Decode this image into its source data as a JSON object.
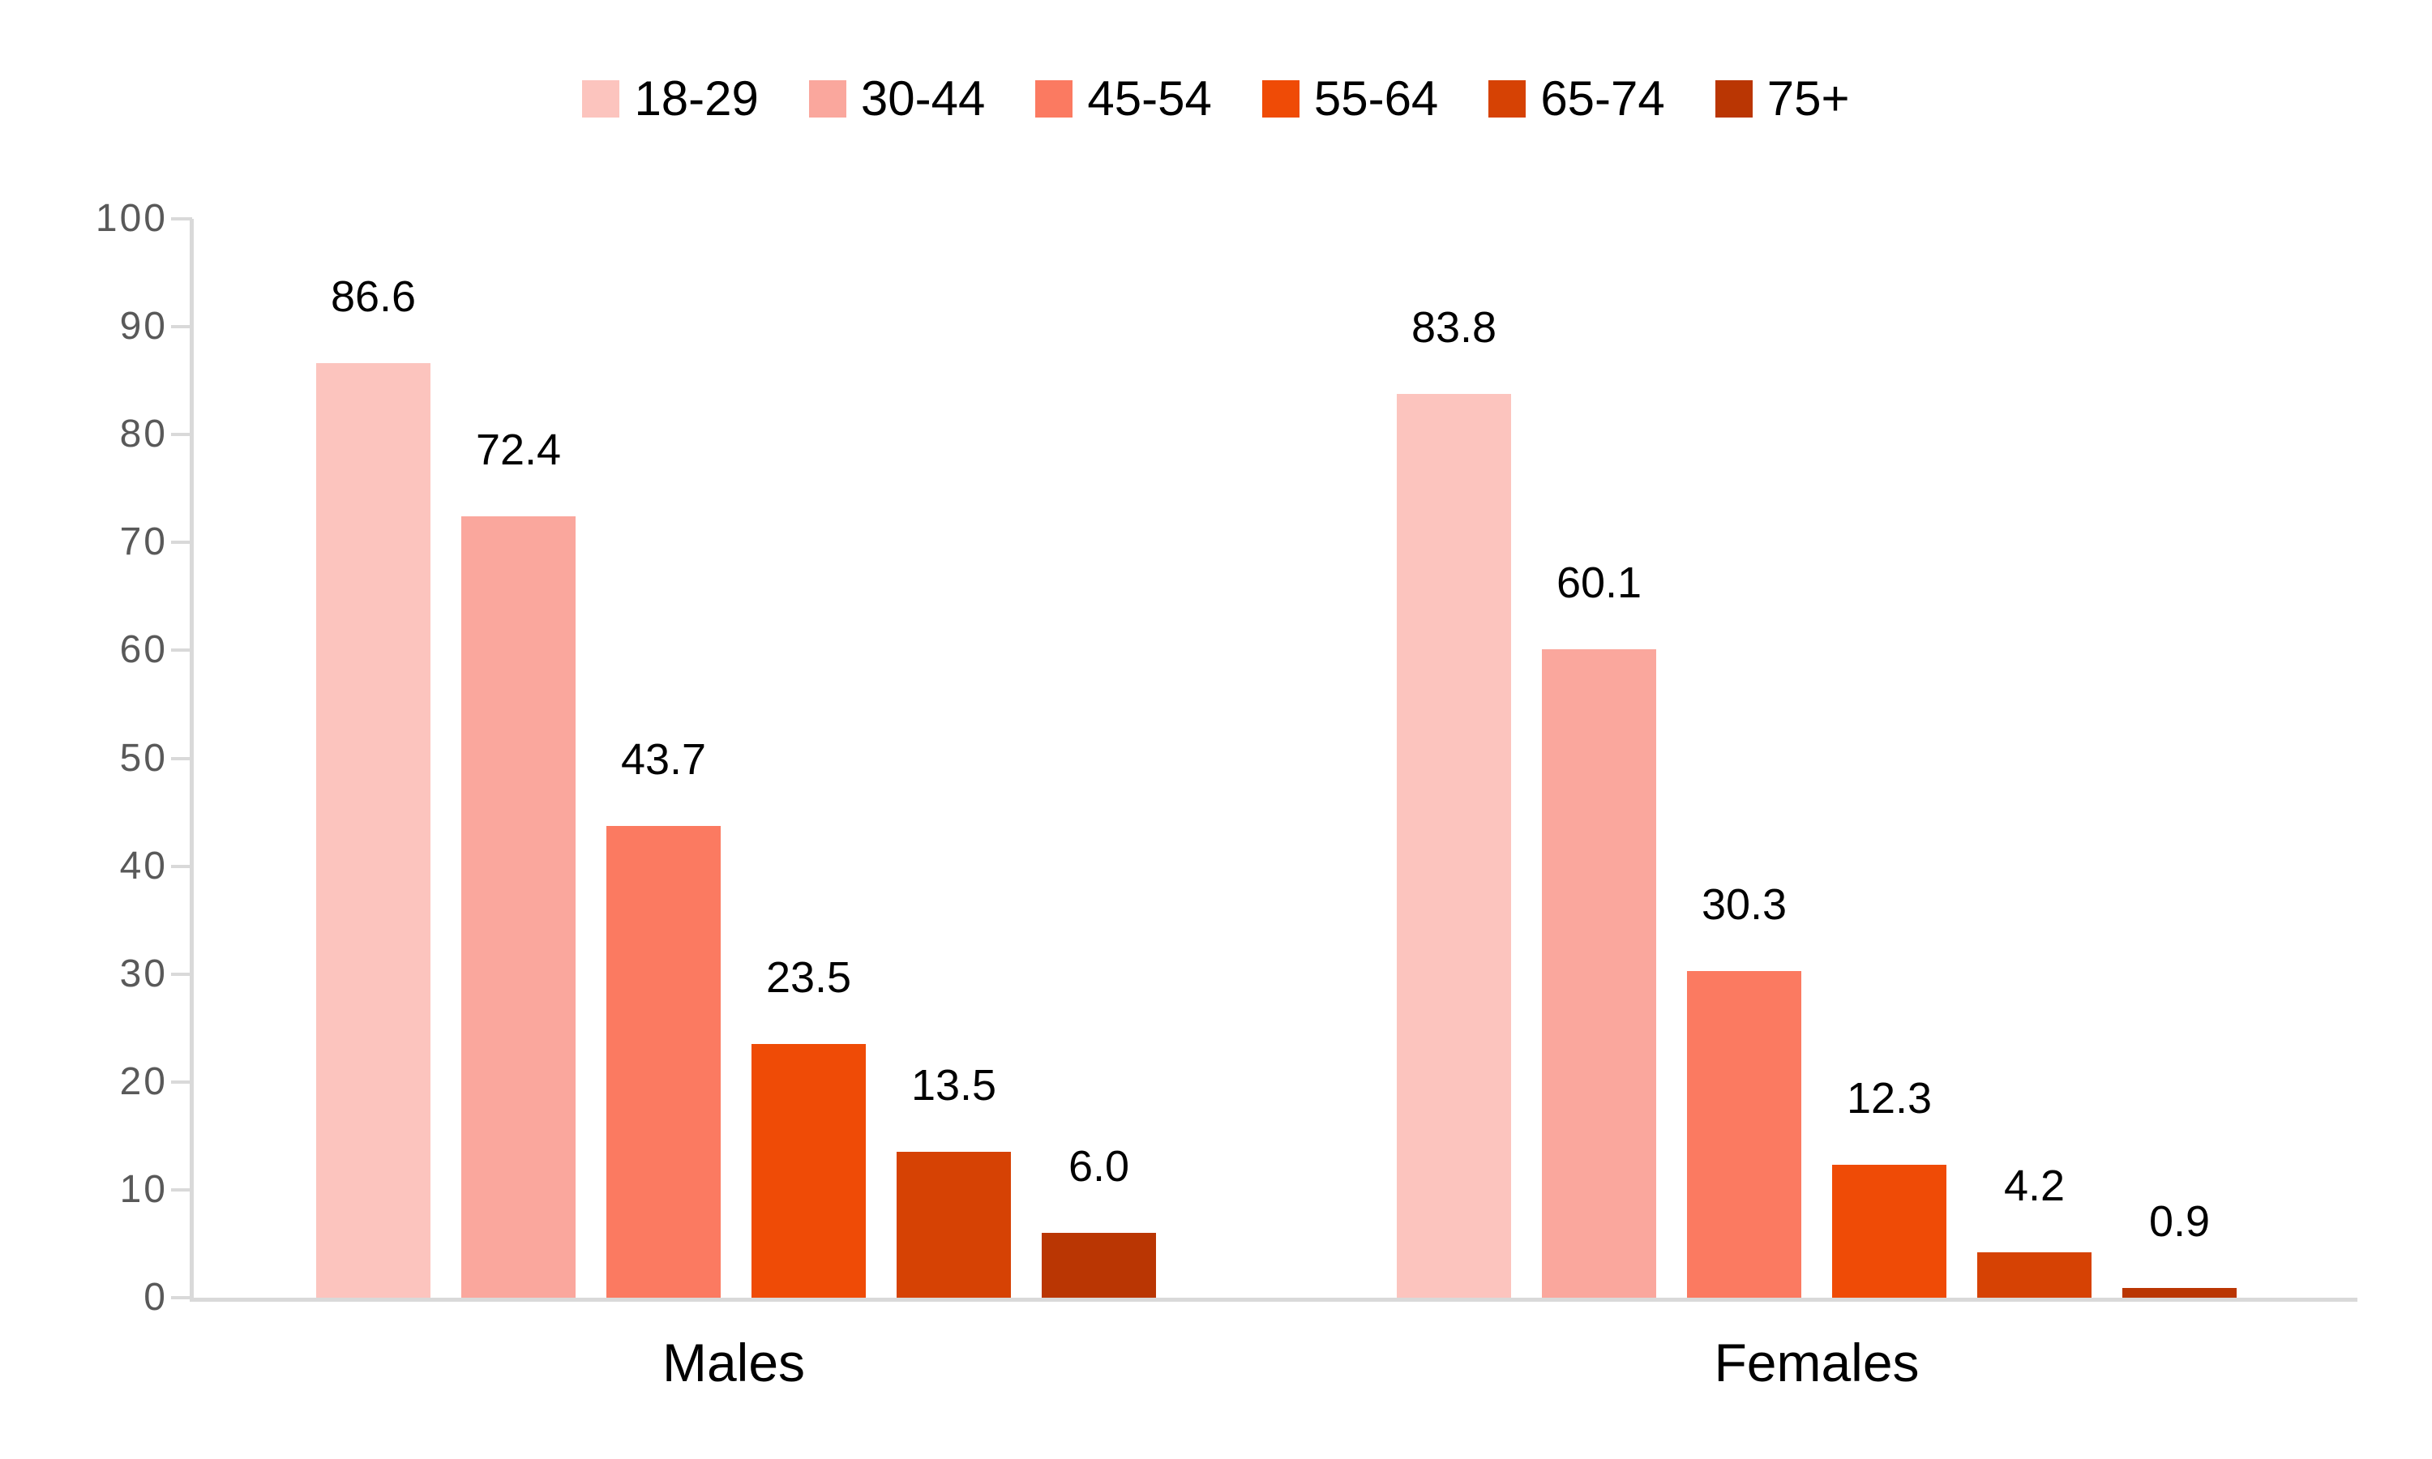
{
  "chart_data": {
    "type": "bar",
    "title": "",
    "xlabel": "",
    "ylabel": "",
    "categories": [
      "Males",
      "Females"
    ],
    "series": [
      {
        "name": "18-29",
        "color": "#FCC4BE",
        "values": [
          86.6,
          83.8
        ],
        "labels": [
          "86.6",
          "83.8"
        ]
      },
      {
        "name": "30-44",
        "color": "#FAA79D",
        "values": [
          72.4,
          60.1
        ],
        "labels": [
          "72.4",
          "60.1"
        ]
      },
      {
        "name": "45-54",
        "color": "#FB7A61",
        "values": [
          43.7,
          30.3
        ],
        "labels": [
          "43.7",
          "30.3"
        ]
      },
      {
        "name": "55-64",
        "color": "#EF4B06",
        "values": [
          23.5,
          12.3
        ],
        "labels": [
          "23.5",
          "12.3"
        ]
      },
      {
        "name": "65-74",
        "color": "#D64204",
        "values": [
          13.5,
          4.2
        ],
        "labels": [
          "13.5",
          "4.2"
        ]
      },
      {
        "name": "75+",
        "color": "#BA3603",
        "values": [
          6.0,
          0.9
        ],
        "labels": [
          "6.0",
          "0.9"
        ]
      }
    ],
    "ylim": [
      0,
      100
    ],
    "yticks": [
      "0",
      "10",
      "20",
      "30",
      "40",
      "50",
      "60",
      "70",
      "80",
      "90",
      "100"
    ],
    "grid": false,
    "legend_position": "top",
    "value_labels_shown": true
  },
  "style_colors": {
    "axis_line": "#D9D9D9",
    "tick_label": "#595959",
    "value_label": "#000000",
    "category_label": "#000000",
    "background": "#FFFFFF"
  }
}
